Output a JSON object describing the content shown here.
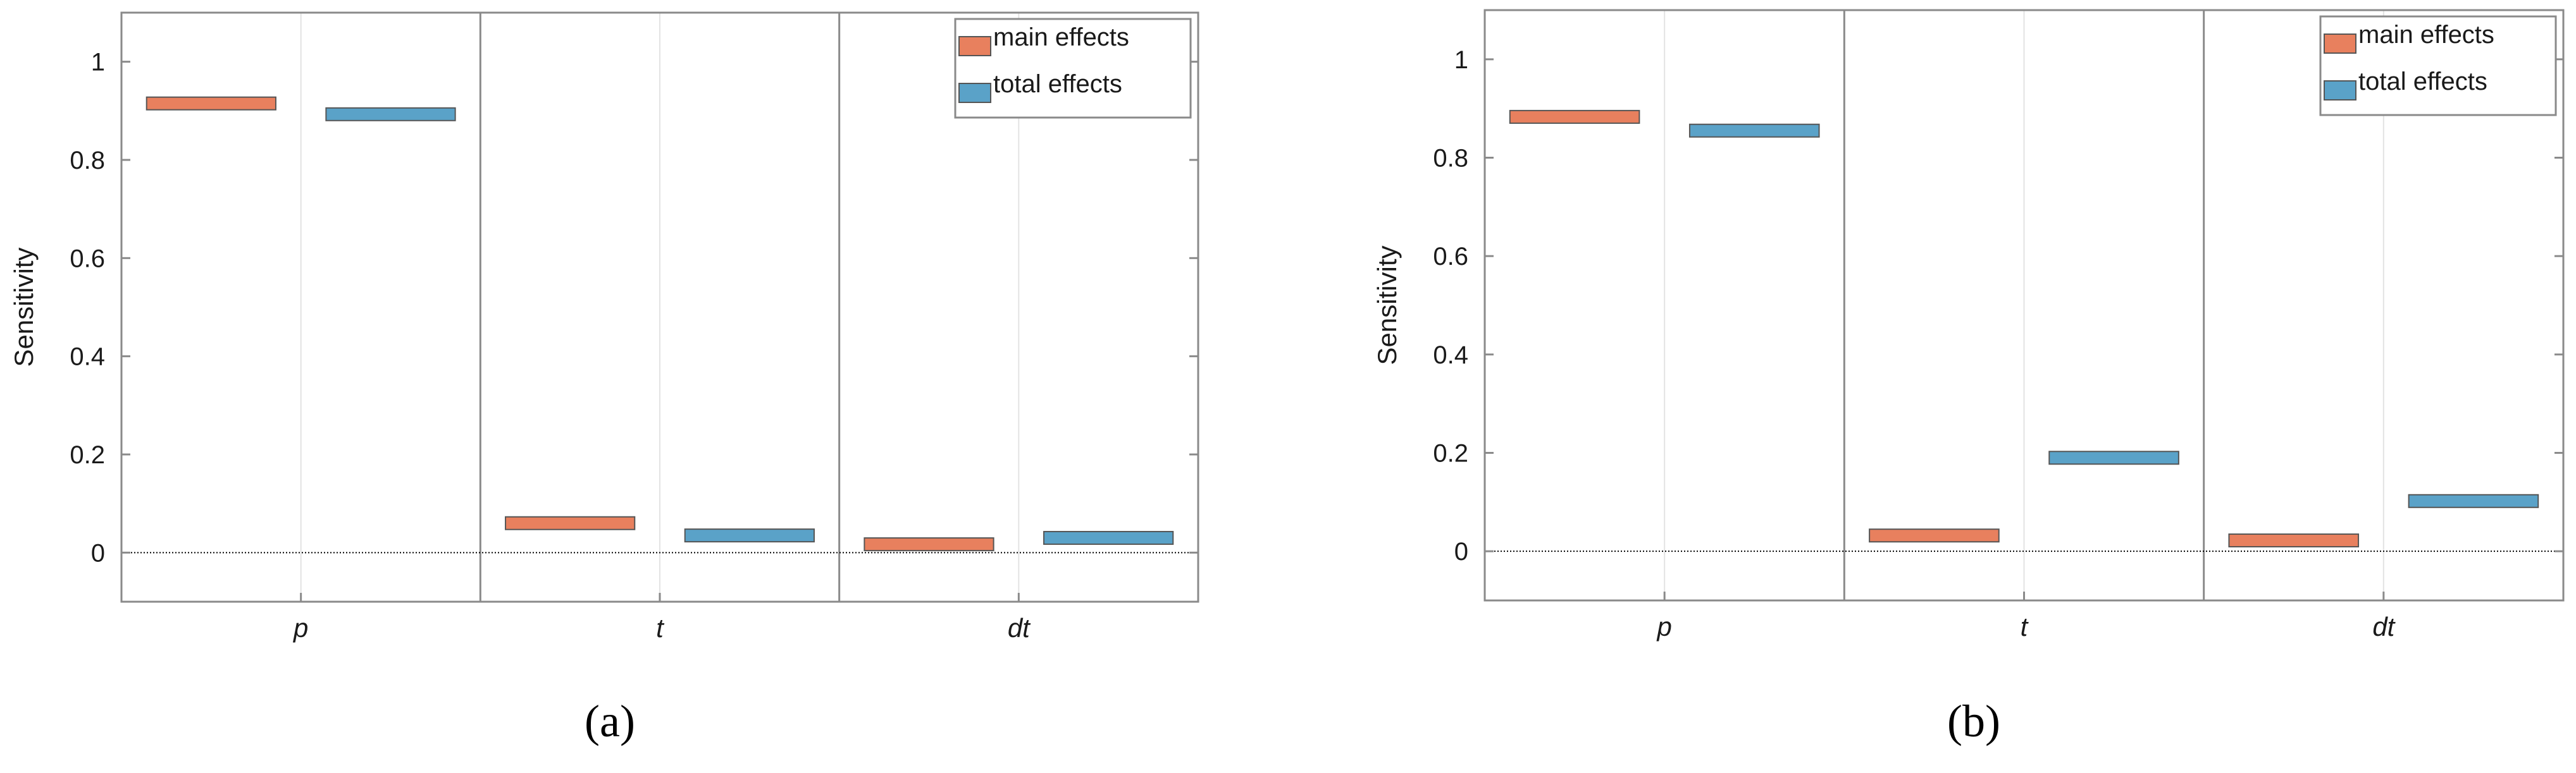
{
  "chart_data": [
    {
      "panel": "a",
      "caption": "(a)",
      "type": "bar",
      "ylabel": "Sensitivity",
      "xlabel": "",
      "ylim": [
        -0.1,
        1.1
      ],
      "yticks": [
        0,
        0.2,
        0.4,
        0.6,
        0.8,
        1
      ],
      "ytick_labels": [
        "0",
        "0.2",
        "0.4",
        "0.6",
        "0.8",
        "1"
      ],
      "categories": [
        "p",
        "t",
        "dt"
      ],
      "legend_position": "top-right",
      "series": [
        {
          "name": "main effects",
          "color": "#e8805e",
          "values": [
            0.915,
            0.06,
            0.017
          ]
        },
        {
          "name": "total effects",
          "color": "#5aa2c8",
          "values": [
            0.893,
            0.035,
            0.03
          ]
        }
      ]
    },
    {
      "panel": "b",
      "caption": "(b)",
      "type": "bar",
      "ylabel": "Sensitivity",
      "xlabel": "",
      "ylim": [
        -0.1,
        1.1
      ],
      "yticks": [
        0,
        0.2,
        0.4,
        0.6,
        0.8,
        1
      ],
      "ytick_labels": [
        "0",
        "0.2",
        "0.4",
        "0.6",
        "0.8",
        "1"
      ],
      "categories": [
        "p",
        "t",
        "dt"
      ],
      "legend_position": "top-right",
      "series": [
        {
          "name": "main effects",
          "color": "#e8805e",
          "values": [
            0.883,
            0.032,
            0.022
          ]
        },
        {
          "name": "total effects",
          "color": "#5aa2c8",
          "values": [
            0.855,
            0.19,
            0.102
          ]
        }
      ]
    }
  ]
}
